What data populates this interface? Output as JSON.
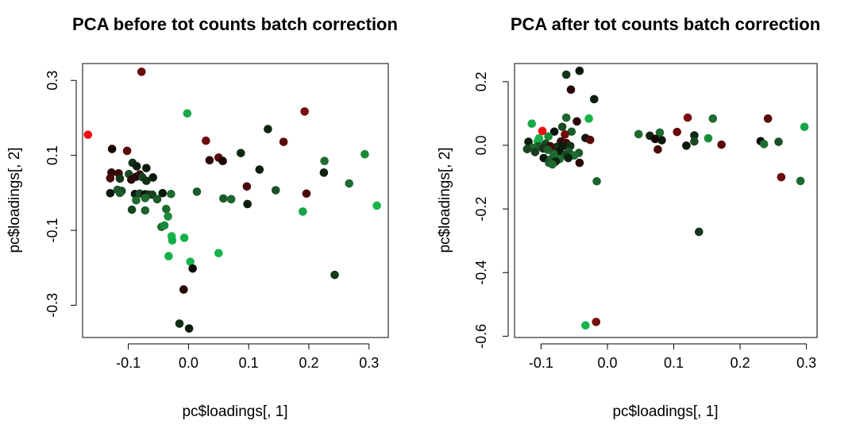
{
  "chart_data": [
    {
      "type": "scatter",
      "title": "PCA before tot counts batch correction",
      "xlabel": "pc$loadings[, 1]",
      "ylabel": "pc$loadings[, 2]",
      "xlim": [
        -0.176,
        0.332
      ],
      "ylim": [
        -0.386,
        0.345
      ],
      "xticks": [
        -0.1,
        0.0,
        0.1,
        0.2,
        0.3
      ],
      "yticks": [
        -0.3,
        -0.1,
        0.1,
        0.3
      ],
      "xtick_labels": [
        "-0.1",
        "0.0",
        "0.1",
        "0.2",
        "0.3"
      ],
      "ytick_labels": [
        "-0.3",
        "-0.1",
        "0.1",
        "0.3"
      ],
      "points": [
        {
          "x": -0.167,
          "y": 0.155,
          "c": "#ee1111"
        },
        {
          "x": -0.078,
          "y": 0.323,
          "c": "#6a0a0a"
        },
        {
          "x": -0.002,
          "y": 0.212,
          "c": "#18a84a"
        },
        {
          "x": 0.193,
          "y": 0.217,
          "c": "#7a0e0e"
        },
        {
          "x": 0.132,
          "y": 0.17,
          "c": "#0d2410"
        },
        {
          "x": 0.029,
          "y": 0.139,
          "c": "#6e0c0c"
        },
        {
          "x": 0.158,
          "y": 0.136,
          "c": "#5a0909"
        },
        {
          "x": -0.127,
          "y": 0.117,
          "c": "#1a0404"
        },
        {
          "x": -0.102,
          "y": 0.112,
          "c": "#5a0a0a"
        },
        {
          "x": 0.087,
          "y": 0.106,
          "c": "#0e2a12"
        },
        {
          "x": 0.293,
          "y": 0.103,
          "c": "#1a8a3a"
        },
        {
          "x": 0.05,
          "y": 0.094,
          "c": "#5a0909"
        },
        {
          "x": 0.035,
          "y": 0.087,
          "c": "#2a0707"
        },
        {
          "x": 0.057,
          "y": 0.085,
          "c": "#1a0505"
        },
        {
          "x": 0.226,
          "y": 0.085,
          "c": "#1f6b31"
        },
        {
          "x": -0.093,
          "y": 0.08,
          "c": "#123318"
        },
        {
          "x": -0.086,
          "y": 0.071,
          "c": "#0c1e0e"
        },
        {
          "x": -0.07,
          "y": 0.066,
          "c": "#0c1a0c"
        },
        {
          "x": 0.118,
          "y": 0.062,
          "c": "#0d1f0f"
        },
        {
          "x": -0.128,
          "y": 0.054,
          "c": "#2d0808"
        },
        {
          "x": -0.116,
          "y": 0.052,
          "c": "#3a0707"
        },
        {
          "x": -0.099,
          "y": 0.05,
          "c": "#1c4a24"
        },
        {
          "x": -0.081,
          "y": 0.049,
          "c": "#3d0909"
        },
        {
          "x": -0.087,
          "y": 0.043,
          "c": "#2a0606"
        },
        {
          "x": -0.077,
          "y": 0.042,
          "c": "#183e1e"
        },
        {
          "x": -0.059,
          "y": 0.041,
          "c": "#0a1a0b"
        },
        {
          "x": -0.13,
          "y": 0.039,
          "c": "#4a0808"
        },
        {
          "x": -0.114,
          "y": 0.038,
          "c": "#14361a"
        },
        {
          "x": -0.095,
          "y": 0.035,
          "c": "#2a0a0a"
        },
        {
          "x": -0.07,
          "y": 0.032,
          "c": "#123015"
        },
        {
          "x": 0.225,
          "y": 0.054,
          "c": "#0d220f"
        },
        {
          "x": 0.267,
          "y": 0.025,
          "c": "#1f6d32"
        },
        {
          "x": 0.313,
          "y": -0.034,
          "c": "#15b548"
        },
        {
          "x": 0.097,
          "y": 0.017,
          "c": "#4a0909"
        },
        {
          "x": 0.145,
          "y": 0.007,
          "c": "#1a5028"
        },
        {
          "x": 0.014,
          "y": 0.003,
          "c": "#1a5c2b"
        },
        {
          "x": -0.118,
          "y": 0.008,
          "c": "#1f5d2d"
        },
        {
          "x": -0.111,
          "y": 0.005,
          "c": "#17481f"
        },
        {
          "x": -0.13,
          "y": -0.001,
          "c": "#0a160a"
        },
        {
          "x": -0.114,
          "y": 0.0,
          "c": "#1d5a2c"
        },
        {
          "x": -0.089,
          "y": -0.003,
          "c": "#0c1d0e"
        },
        {
          "x": -0.081,
          "y": -0.002,
          "c": "#1a4a24"
        },
        {
          "x": -0.072,
          "y": -0.004,
          "c": "#0a1709"
        },
        {
          "x": -0.066,
          "y": -0.005,
          "c": "#123216"
        },
        {
          "x": -0.06,
          "y": -0.005,
          "c": "#1a461f"
        },
        {
          "x": -0.043,
          "y": -0.001,
          "c": "#0a1709"
        },
        {
          "x": -0.029,
          "y": -0.003,
          "c": "#1e6a2e"
        },
        {
          "x": 0.196,
          "y": -0.002,
          "c": "#4a0808"
        },
        {
          "x": -0.087,
          "y": -0.02,
          "c": "#1f6a30"
        },
        {
          "x": -0.072,
          "y": -0.014,
          "c": "#1e6a31"
        },
        {
          "x": -0.052,
          "y": -0.017,
          "c": "#1b5a2a"
        },
        {
          "x": 0.058,
          "y": -0.015,
          "c": "#1c5c2c"
        },
        {
          "x": 0.071,
          "y": -0.017,
          "c": "#1e6530"
        },
        {
          "x": 0.098,
          "y": -0.03,
          "c": "#0c1f0f"
        },
        {
          "x": 0.19,
          "y": -0.05,
          "c": "#16a347"
        },
        {
          "x": -0.094,
          "y": -0.045,
          "c": "#15461e"
        },
        {
          "x": -0.072,
          "y": -0.047,
          "c": "#1d612e"
        },
        {
          "x": -0.037,
          "y": -0.043,
          "c": "#1e6a2f"
        },
        {
          "x": -0.034,
          "y": -0.063,
          "c": "#1c8a3a"
        },
        {
          "x": -0.045,
          "y": -0.091,
          "c": "#1c6e31"
        },
        {
          "x": -0.04,
          "y": -0.087,
          "c": "#1a8a3a"
        },
        {
          "x": -0.028,
          "y": -0.116,
          "c": "#1ab24c"
        },
        {
          "x": -0.027,
          "y": -0.127,
          "c": "#16b048"
        },
        {
          "x": -0.007,
          "y": -0.12,
          "c": "#16b04a"
        },
        {
          "x": 0.05,
          "y": -0.161,
          "c": "#17b44a"
        },
        {
          "x": -0.033,
          "y": -0.169,
          "c": "#12b046"
        },
        {
          "x": 0.003,
          "y": -0.184,
          "c": "#1ab54d"
        },
        {
          "x": 0.007,
          "y": -0.202,
          "c": "#0a0a0a"
        },
        {
          "x": 0.243,
          "y": -0.219,
          "c": "#14381a"
        },
        {
          "x": -0.008,
          "y": -0.258,
          "c": "#2a0606"
        },
        {
          "x": -0.015,
          "y": -0.349,
          "c": "#0f2f14"
        },
        {
          "x": 0.001,
          "y": -0.362,
          "c": "#0c1d0e"
        }
      ]
    },
    {
      "type": "scatter",
      "title": "PCA after tot counts batch correction",
      "xlabel": "pc$loadings[, 1]",
      "ylabel": "pc$loadings[, 2]",
      "xlim": [
        -0.14,
        0.316
      ],
      "ylim": [
        -0.604,
        0.257
      ],
      "xticks": [
        -0.1,
        0.0,
        0.1,
        0.2,
        0.3
      ],
      "yticks": [
        -0.6,
        -0.4,
        -0.2,
        0.0,
        0.2
      ],
      "xtick_labels": [
        "-0.1",
        "0.0",
        "0.1",
        "0.2",
        "0.3"
      ],
      "ytick_labels": [
        "-0.6",
        "-0.4",
        "-0.2",
        "0.0",
        "0.2"
      ],
      "points": [
        {
          "x": -0.042,
          "y": 0.234,
          "c": "#0a1709"
        },
        {
          "x": -0.062,
          "y": 0.222,
          "c": "#123316"
        },
        {
          "x": -0.055,
          "y": 0.175,
          "c": "#2a0707"
        },
        {
          "x": -0.02,
          "y": 0.145,
          "c": "#0c1e0e"
        },
        {
          "x": -0.062,
          "y": 0.087,
          "c": "#1e6530"
        },
        {
          "x": -0.028,
          "y": 0.084,
          "c": "#16b048"
        },
        {
          "x": 0.121,
          "y": 0.087,
          "c": "#7a0e0e"
        },
        {
          "x": 0.159,
          "y": 0.084,
          "c": "#1f6b31"
        },
        {
          "x": 0.242,
          "y": 0.084,
          "c": "#5a0909"
        },
        {
          "x": -0.046,
          "y": 0.075,
          "c": "#2a0606"
        },
        {
          "x": -0.114,
          "y": 0.068,
          "c": "#18a84a"
        },
        {
          "x": 0.297,
          "y": 0.058,
          "c": "#16a347"
        },
        {
          "x": -0.068,
          "y": 0.058,
          "c": "#1a4a24"
        },
        {
          "x": -0.098,
          "y": 0.045,
          "c": "#ee1111"
        },
        {
          "x": -0.08,
          "y": 0.043,
          "c": "#0a160a"
        },
        {
          "x": -0.054,
          "y": 0.043,
          "c": "#1a5c2b"
        },
        {
          "x": -0.064,
          "y": 0.034,
          "c": "#6e0c0c"
        },
        {
          "x": 0.047,
          "y": 0.035,
          "c": "#1e6a2e"
        },
        {
          "x": 0.105,
          "y": 0.042,
          "c": "#6a0a0a"
        },
        {
          "x": 0.079,
          "y": 0.04,
          "c": "#1f6d32"
        },
        {
          "x": 0.064,
          "y": 0.03,
          "c": "#0d2410"
        },
        {
          "x": 0.131,
          "y": 0.031,
          "c": "#0e2a12"
        },
        {
          "x": -0.089,
          "y": 0.028,
          "c": "#1c8a3a"
        },
        {
          "x": -0.103,
          "y": 0.022,
          "c": "#1ab24c"
        },
        {
          "x": -0.033,
          "y": 0.023,
          "c": "#0a1a0b"
        },
        {
          "x": -0.026,
          "y": 0.017,
          "c": "#5a0909"
        },
        {
          "x": 0.072,
          "y": 0.02,
          "c": "#1a0505"
        },
        {
          "x": 0.082,
          "y": 0.016,
          "c": "#0c1a0c"
        },
        {
          "x": 0.152,
          "y": 0.022,
          "c": "#1a8a3a"
        },
        {
          "x": 0.231,
          "y": 0.013,
          "c": "#0a0a0a"
        },
        {
          "x": -0.119,
          "y": 0.011,
          "c": "#0c1d0e"
        },
        {
          "x": -0.105,
          "y": 0.012,
          "c": "#15b548"
        },
        {
          "x": 0.258,
          "y": 0.011,
          "c": "#1a5028"
        },
        {
          "x": 0.131,
          "y": 0.012,
          "c": "#17481f"
        },
        {
          "x": -0.07,
          "y": 0.012,
          "c": "#2a0707"
        },
        {
          "x": -0.062,
          "y": 0.007,
          "c": "#4a0909"
        },
        {
          "x": -0.093,
          "y": 0.005,
          "c": "#1c4a24"
        },
        {
          "x": 0.236,
          "y": 0.004,
          "c": "#1f6d32"
        },
        {
          "x": 0.172,
          "y": 0.002,
          "c": "#5a0a0a"
        },
        {
          "x": 0.119,
          "y": -0.001,
          "c": "#0a1709"
        },
        {
          "x": -0.086,
          "y": -0.003,
          "c": "#3d0909"
        },
        {
          "x": -0.076,
          "y": -0.005,
          "c": "#123015"
        },
        {
          "x": -0.067,
          "y": -0.003,
          "c": "#0c1d0e"
        },
        {
          "x": -0.056,
          "y": -0.002,
          "c": "#123216"
        },
        {
          "x": -0.104,
          "y": -0.003,
          "c": "#1d5a2c"
        },
        {
          "x": -0.113,
          "y": -0.008,
          "c": "#1e6a31"
        },
        {
          "x": -0.121,
          "y": -0.012,
          "c": "#1a461f"
        },
        {
          "x": -0.097,
          "y": -0.01,
          "c": "#14361a"
        },
        {
          "x": -0.085,
          "y": -0.012,
          "c": "#4a0808"
        },
        {
          "x": -0.09,
          "y": -0.014,
          "c": "#1f5d2d"
        },
        {
          "x": 0.076,
          "y": -0.013,
          "c": "#4a0808"
        },
        {
          "x": -0.109,
          "y": -0.021,
          "c": "#183e1e"
        },
        {
          "x": -0.072,
          "y": -0.02,
          "c": "#0a1709"
        },
        {
          "x": -0.058,
          "y": -0.021,
          "c": "#1b5a2a"
        },
        {
          "x": -0.081,
          "y": -0.027,
          "c": "#1f6a30"
        },
        {
          "x": -0.064,
          "y": -0.03,
          "c": "#15461e"
        },
        {
          "x": -0.043,
          "y": -0.024,
          "c": "#1c5c2c"
        },
        {
          "x": -0.05,
          "y": -0.032,
          "c": "#1c6e31"
        },
        {
          "x": -0.096,
          "y": -0.04,
          "c": "#0a1709"
        },
        {
          "x": -0.086,
          "y": -0.045,
          "c": "#1d612e"
        },
        {
          "x": -0.072,
          "y": -0.043,
          "c": "#1e6a2f"
        },
        {
          "x": -0.088,
          "y": -0.055,
          "c": "#1a5c2b"
        },
        {
          "x": -0.078,
          "y": -0.051,
          "c": "#0d220f"
        },
        {
          "x": -0.059,
          "y": -0.04,
          "c": "#0c1f0f"
        },
        {
          "x": -0.042,
          "y": -0.055,
          "c": "#2a0606"
        },
        {
          "x": -0.083,
          "y": -0.06,
          "c": "#1e6a31"
        },
        {
          "x": 0.262,
          "y": -0.1,
          "c": "#6a0a0a"
        },
        {
          "x": 0.291,
          "y": -0.112,
          "c": "#1e6a2f"
        },
        {
          "x": -0.016,
          "y": -0.113,
          "c": "#1e6530"
        },
        {
          "x": 0.138,
          "y": -0.272,
          "c": "#14381a"
        },
        {
          "x": -0.033,
          "y": -0.566,
          "c": "#17b44a"
        },
        {
          "x": -0.017,
          "y": -0.555,
          "c": "#7a0e0e"
        }
      ]
    }
  ]
}
